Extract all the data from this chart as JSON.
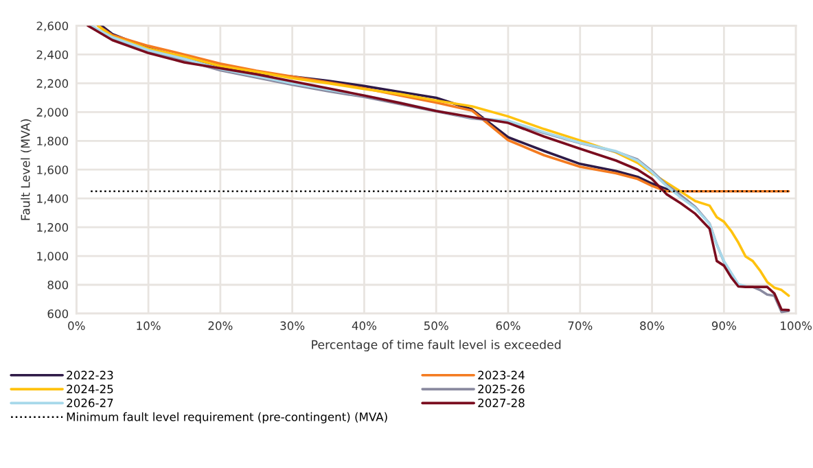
{
  "chart_data": {
    "type": "line",
    "xlabel": "Percentage of time fault level is exceeded",
    "ylabel": "Fault Level (MVA)",
    "xlim": [
      0,
      100
    ],
    "ylim": [
      600,
      2600
    ],
    "xticks": [
      {
        "value": 0,
        "label": "0%"
      },
      {
        "value": 10,
        "label": "10%"
      },
      {
        "value": 20,
        "label": "20%"
      },
      {
        "value": 30,
        "label": "30%"
      },
      {
        "value": 40,
        "label": "40%"
      },
      {
        "value": 50,
        "label": "50%"
      },
      {
        "value": 60,
        "label": "60%"
      },
      {
        "value": 70,
        "label": "70%"
      },
      {
        "value": 80,
        "label": "80%"
      },
      {
        "value": 90,
        "label": "90%"
      },
      {
        "value": 100,
        "label": "100%"
      }
    ],
    "yticks": [
      {
        "value": 600,
        "label": "600"
      },
      {
        "value": 800,
        "label": "800"
      },
      {
        "value": 1000,
        "label": "1,000"
      },
      {
        "value": 1200,
        "label": "1,200"
      },
      {
        "value": 1400,
        "label": "1,400"
      },
      {
        "value": 1600,
        "label": "1,600"
      },
      {
        "value": 1800,
        "label": "1,800"
      },
      {
        "value": 2000,
        "label": "2,000"
      },
      {
        "value": 2200,
        "label": "2,200"
      },
      {
        "value": 2400,
        "label": "2,400"
      },
      {
        "value": 2600,
        "label": "2,600"
      }
    ],
    "grid": true,
    "legend": "bottom",
    "marker": "none",
    "series": [
      {
        "name": "2022-23",
        "color": "#2e1a47",
        "x": [
          3.5,
          5,
          10,
          15,
          20,
          25,
          30,
          35,
          40,
          45,
          50,
          55,
          60,
          65,
          70,
          75,
          78,
          80,
          82,
          83
        ],
        "values": [
          2600,
          2542,
          2444,
          2378,
          2320,
          2271,
          2247,
          2217,
          2181,
          2140,
          2099,
          2018,
          1825,
          1730,
          1640,
          1590,
          1550,
          1503,
          1466,
          1450
        ]
      },
      {
        "name": "2023-24",
        "color": "#f47b20",
        "x": [
          3,
          5,
          10,
          15,
          20,
          25,
          30,
          35,
          40,
          45,
          50,
          55,
          60,
          65,
          70,
          75,
          78,
          80,
          82,
          99
        ],
        "values": [
          2600,
          2534,
          2460,
          2400,
          2337,
          2288,
          2247,
          2206,
          2165,
          2115,
          2066,
          2010,
          1805,
          1700,
          1620,
          1575,
          1535,
          1487,
          1450,
          1450
        ]
      },
      {
        "name": "2024-25",
        "color": "#ffc20e",
        "x": [
          3,
          5,
          10,
          15,
          20,
          25,
          30,
          35,
          40,
          45,
          50,
          55,
          60,
          65,
          70,
          75,
          78,
          80,
          82,
          84,
          86,
          88,
          89,
          90,
          91,
          92,
          93,
          94,
          95,
          96,
          97,
          98,
          99
        ],
        "values": [
          2600,
          2525,
          2440,
          2385,
          2320,
          2280,
          2235,
          2200,
          2160,
          2125,
          2080,
          2040,
          1970,
          1882,
          1803,
          1720,
          1647,
          1575,
          1510,
          1447,
          1382,
          1350,
          1270,
          1238,
          1174,
          1093,
          997,
          965,
          900,
          820,
          780,
          764,
          724
        ]
      },
      {
        "name": "2025-26",
        "color": "#8a8aa0",
        "x": [
          2,
          5,
          10,
          15,
          20,
          25,
          30,
          35,
          40,
          45,
          50,
          55,
          60,
          65,
          70,
          75,
          78,
          80,
          82,
          84,
          86,
          88,
          89,
          90,
          91,
          92,
          93,
          94,
          95,
          96,
          97,
          98,
          99
        ],
        "values": [
          2600,
          2515,
          2420,
          2360,
          2290,
          2240,
          2190,
          2145,
          2105,
          2055,
          2005,
          1955,
          1935,
          1855,
          1785,
          1725,
          1670,
          1590,
          1495,
          1422,
          1342,
          1225,
          1080,
          960,
          880,
          800,
          785,
          785,
          764,
          732,
          724,
          611,
          619
        ]
      },
      {
        "name": "2026-27",
        "color": "#a6d8ea",
        "x": [
          2,
          5,
          10,
          15,
          20,
          25,
          30,
          35,
          40,
          45,
          50,
          55,
          60,
          65,
          70,
          75,
          78,
          80,
          82,
          84,
          86,
          88,
          89,
          90,
          91,
          92,
          93
        ],
        "values": [
          2600,
          2520,
          2430,
          2370,
          2300,
          2250,
          2200,
          2155,
          2115,
          2065,
          2010,
          1960,
          1940,
          1860,
          1787,
          1728,
          1663,
          1583,
          1487,
          1406,
          1334,
          1222,
          1077,
          965,
          884,
          804,
          790
        ]
      },
      {
        "name": "2027-28",
        "color": "#7a0c1e",
        "x": [
          1.6,
          5,
          10,
          15,
          20,
          25,
          30,
          35,
          40,
          45,
          50,
          55,
          60,
          65,
          70,
          75,
          78,
          80,
          82,
          84,
          86,
          88,
          89,
          90,
          91,
          92,
          93,
          94,
          95,
          96,
          97,
          98,
          99
        ],
        "values": [
          2600,
          2500,
          2410,
          2345,
          2304,
          2263,
          2214,
          2165,
          2115,
          2063,
          2008,
          1965,
          1925,
          1830,
          1745,
          1663,
          1600,
          1535,
          1430,
          1366,
          1294,
          1190,
          965,
          933,
          852,
          788,
          785,
          785,
          785,
          785,
          740,
          627,
          624
        ]
      },
      {
        "name": "Minimum fault level requirement (pre-contingent) (MVA)",
        "color": "#000000",
        "line_style": "dotted",
        "x": [
          2,
          99
        ],
        "values": [
          1450,
          1450
        ]
      }
    ]
  }
}
